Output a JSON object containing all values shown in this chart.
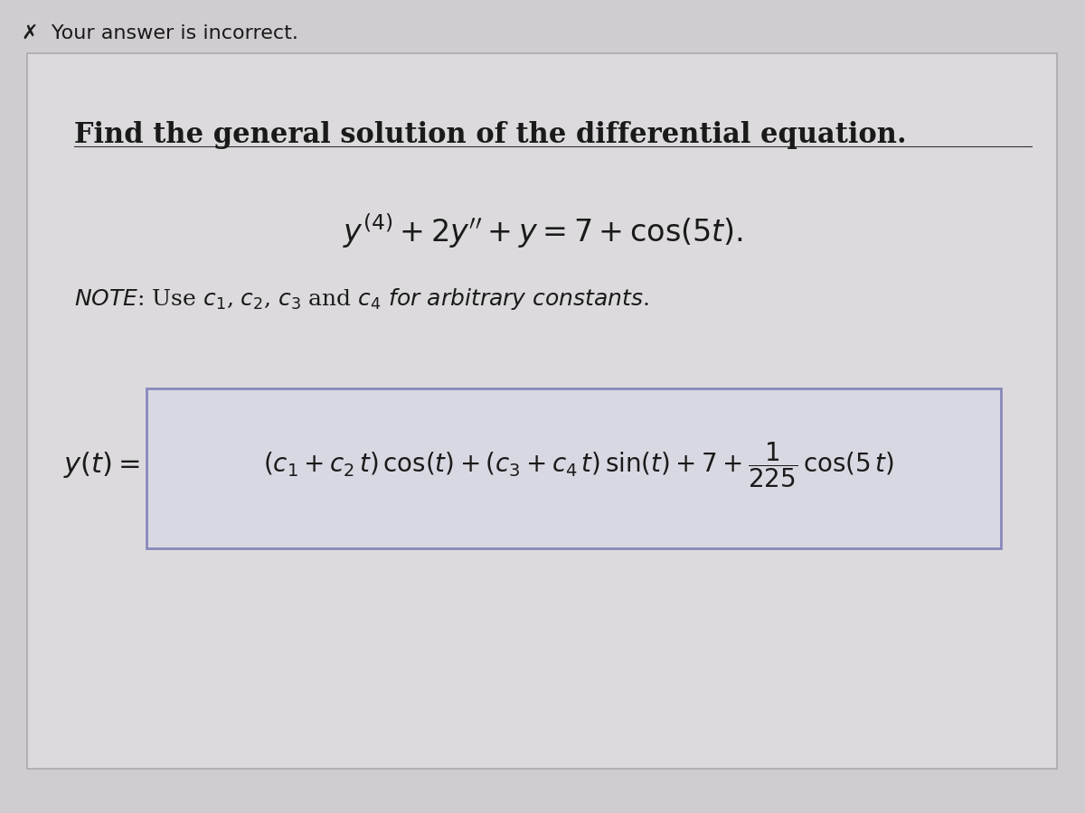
{
  "banner_text": "✗  Your answer is incorrect.",
  "banner_bg": "#c9b8d0",
  "banner_top_bg": "#d8c8e0",
  "main_bg": "#d0cdd0",
  "content_bg": "#dcdadc",
  "title": "Find the general solution of the differential equation.",
  "text_color": "#1a1a1a",
  "title_fontsize": 22,
  "eq_fontsize": 22,
  "note_fontsize": 18,
  "answer_fontsize": 20
}
